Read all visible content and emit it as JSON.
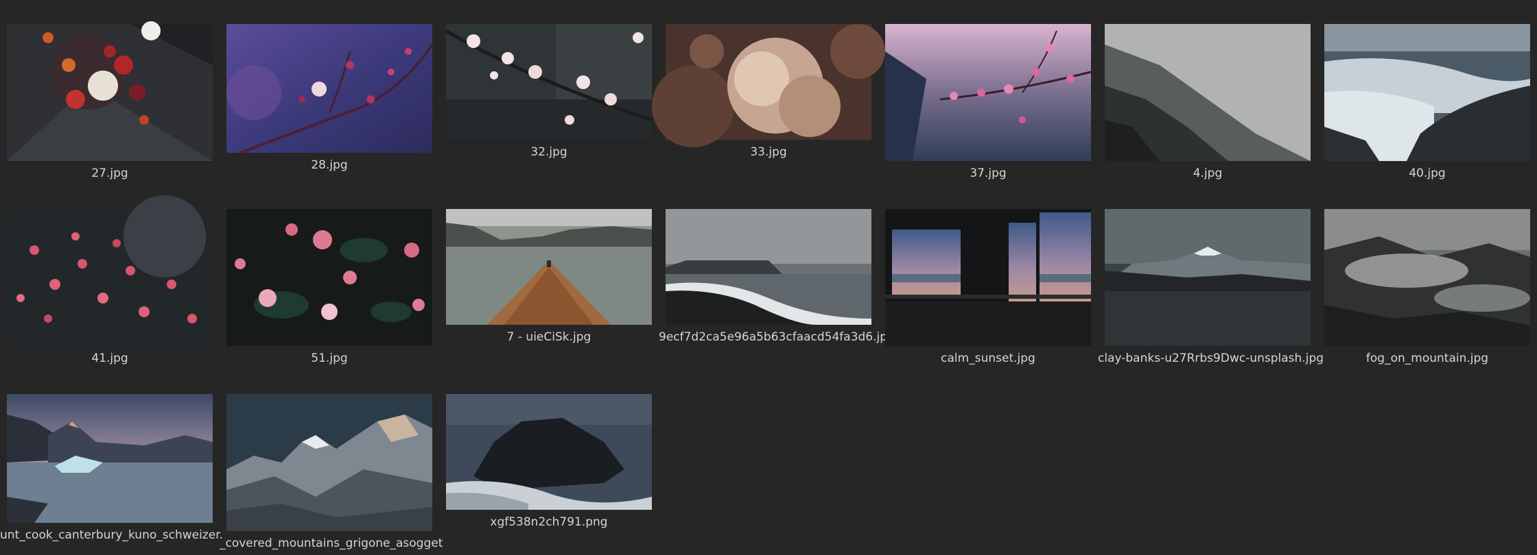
{
  "files": [
    {
      "name": "27.jpg",
      "icon": "flower-bouquet-thumbnail"
    },
    {
      "name": "28.jpg",
      "icon": "cherry-blossom-branch-thumbnail"
    },
    {
      "name": "32.jpg",
      "icon": "white-blossom-branch-thumbnail"
    },
    {
      "name": "33.jpg",
      "icon": "beige-flowers-thumbnail"
    },
    {
      "name": "37.jpg",
      "icon": "pink-blossom-sky-thumbnail"
    },
    {
      "name": "4.jpg",
      "icon": "foggy-forest-thumbnail"
    },
    {
      "name": "40.jpg",
      "icon": "ocean-waves-rocks-thumbnail"
    },
    {
      "name": "41.jpg",
      "icon": "pink-blossom-bush-thumbnail"
    },
    {
      "name": "51.jpg",
      "icon": "camellia-flowers-thumbnail"
    },
    {
      "name": "7 - uieCiSk.jpg",
      "icon": "boat-on-lake-thumbnail"
    },
    {
      "name": "9ecf7d2ca5e96a5b63cfaacd54fa3d6.jp",
      "icon": "black-sand-beach-thumbnail"
    },
    {
      "name": "calm_sunset.jpg",
      "icon": "window-sunset-thumbnail"
    },
    {
      "name": "clay-banks-u27Rrbs9Dwc-unsplash.jpg",
      "icon": "mount-fuji-lake-thumbnail"
    },
    {
      "name": "fog_on_mountain.jpg",
      "icon": "fog-mountain-forest-thumbnail"
    },
    {
      "name": "unt_cook_canterbury_kuno_schweizer.",
      "icon": "glacier-lake-mountains-thumbnail"
    },
    {
      "name": "_covered_mountains_grigone_asogget",
      "icon": "snowy-peaks-thumbnail"
    },
    {
      "name": "xgf538n2ch791.png",
      "icon": "sea-rock-thumbnail"
    }
  ]
}
